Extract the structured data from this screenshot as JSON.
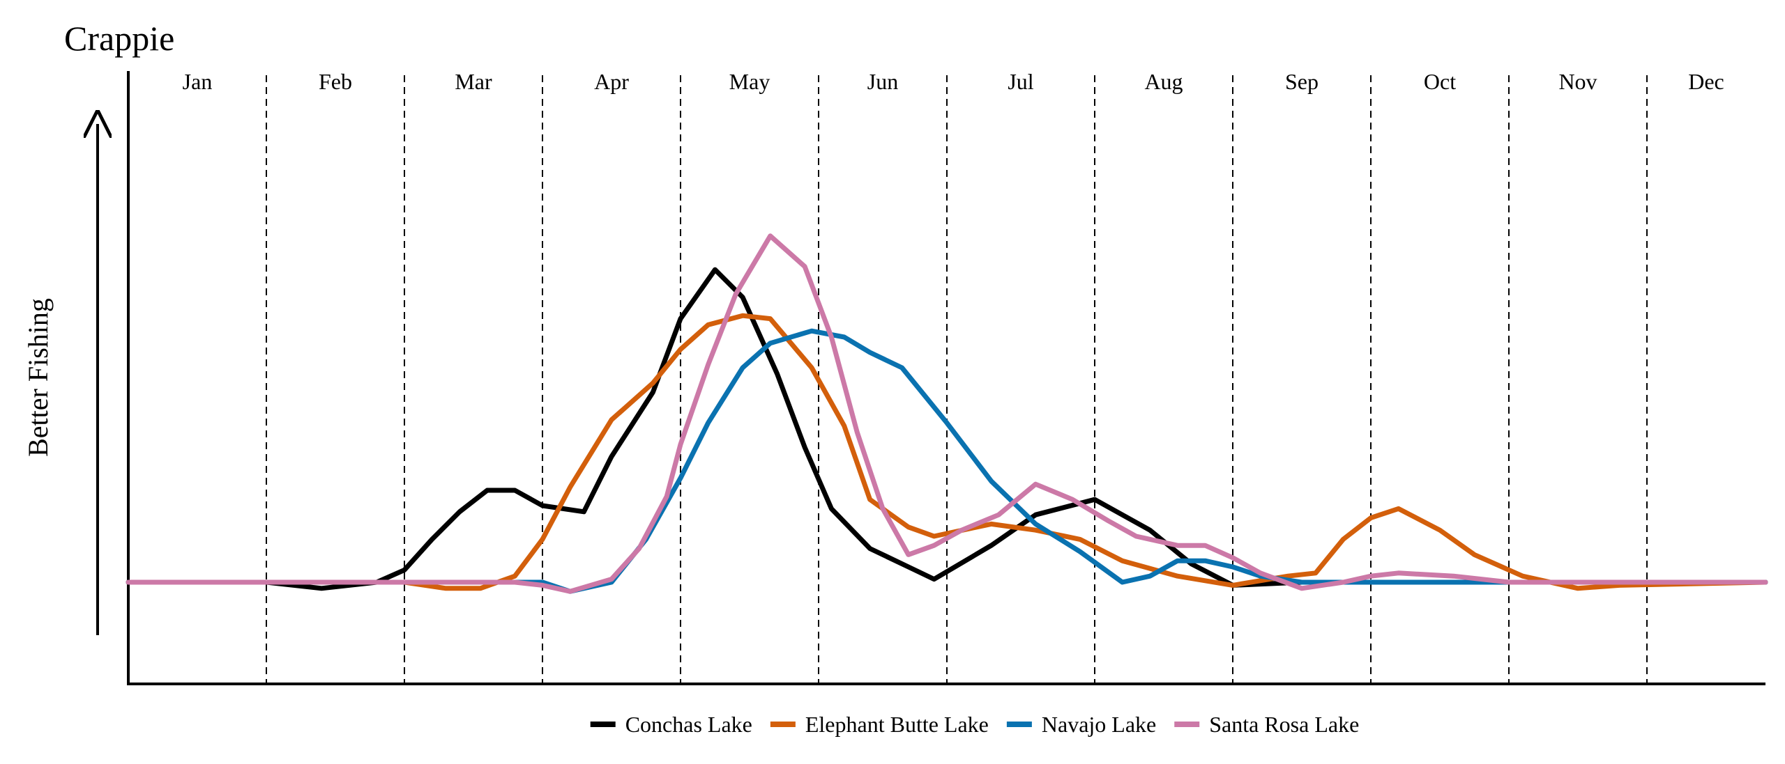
{
  "chart_data": {
    "type": "line",
    "title": "Crappie",
    "ylabel": "Better Fishing",
    "xlabel": "",
    "months": [
      "Jan",
      "Feb",
      "Mar",
      "Apr",
      "May",
      "Jun",
      "Jul",
      "Aug",
      "Sep",
      "Oct",
      "Nov",
      "Dec"
    ],
    "x_unit": "month (1 = start of Jan, 13 = end of Dec)",
    "xlim": [
      1,
      13
    ],
    "ylim": [
      -0.33,
      1.67
    ],
    "grid": "vertical dashed month dividers",
    "legend_position": "bottom-center",
    "series": [
      {
        "name": "Conchas Lake",
        "color": "#000000",
        "x": [
          1,
          2.0,
          2.4,
          2.8,
          3.0,
          3.2,
          3.4,
          3.6,
          3.8,
          4.0,
          4.3,
          4.5,
          4.8,
          5.0,
          5.25,
          5.45,
          5.7,
          5.9,
          6.1,
          6.4,
          6.7,
          6.9,
          7.3,
          7.6,
          8.0,
          8.4,
          8.7,
          9.0,
          9.5,
          10,
          13
        ],
        "y": [
          0,
          0,
          -0.02,
          0,
          0.04,
          0.14,
          0.23,
          0.3,
          0.3,
          0.25,
          0.23,
          0.41,
          0.62,
          0.86,
          1.02,
          0.93,
          0.68,
          0.44,
          0.24,
          0.11,
          0.05,
          0.01,
          0.12,
          0.22,
          0.27,
          0.17,
          0.06,
          -0.01,
          0,
          0,
          0
        ]
      },
      {
        "name": "Elephant Butte Lake",
        "color": "#D35F0B",
        "x": [
          1,
          2.0,
          3.0,
          3.3,
          3.55,
          3.8,
          4.0,
          4.2,
          4.5,
          4.8,
          5.0,
          5.2,
          5.45,
          5.65,
          5.95,
          6.2,
          6.4,
          6.7,
          6.9,
          7.3,
          7.6,
          7.9,
          8.2,
          8.6,
          9.0,
          9.4,
          9.6,
          9.8,
          10.0,
          10.2,
          10.5,
          10.75,
          11.1,
          11.5,
          11.8,
          13
        ],
        "y": [
          0,
          0,
          0,
          -0.02,
          -0.02,
          0.02,
          0.14,
          0.31,
          0.53,
          0.65,
          0.76,
          0.84,
          0.87,
          0.86,
          0.7,
          0.51,
          0.27,
          0.18,
          0.15,
          0.19,
          0.17,
          0.14,
          0.07,
          0.02,
          -0.01,
          0.02,
          0.03,
          0.14,
          0.21,
          0.24,
          0.17,
          0.09,
          0.02,
          -0.02,
          -0.01,
          0
        ]
      },
      {
        "name": "Navajo Lake",
        "color": "#0A72B0",
        "x": [
          1,
          4.0,
          4.2,
          4.5,
          4.75,
          5.0,
          5.2,
          5.45,
          5.65,
          5.95,
          6.2,
          6.4,
          6.65,
          7.0,
          7.3,
          7.6,
          7.9,
          8.2,
          8.4,
          8.6,
          8.8,
          9.0,
          9.2,
          9.5,
          13
        ],
        "y": [
          0,
          0,
          -0.03,
          0,
          0.14,
          0.34,
          0.52,
          0.7,
          0.78,
          0.82,
          0.8,
          0.75,
          0.7,
          0.52,
          0.33,
          0.19,
          0.1,
          0,
          0.02,
          0.07,
          0.07,
          0.05,
          0.02,
          0,
          0
        ]
      },
      {
        "name": "Santa Rosa Lake",
        "color": "#CC79A7",
        "x": [
          1,
          2.0,
          3.0,
          3.3,
          3.55,
          3.8,
          4.0,
          4.2,
          4.5,
          4.7,
          4.9,
          5.0,
          5.2,
          5.4,
          5.65,
          5.9,
          6.1,
          6.3,
          6.5,
          6.7,
          6.9,
          7.1,
          7.35,
          7.6,
          7.85,
          8.1,
          8.3,
          8.6,
          8.8,
          9.0,
          9.2,
          9.5,
          9.8,
          10.0,
          10.2,
          10.6,
          11.0,
          13
        ],
        "y": [
          0,
          0,
          0,
          0,
          0,
          0,
          -0.01,
          -0.03,
          0.01,
          0.11,
          0.28,
          0.45,
          0.71,
          0.94,
          1.13,
          1.03,
          0.8,
          0.49,
          0.24,
          0.09,
          0.12,
          0.17,
          0.22,
          0.32,
          0.27,
          0.2,
          0.15,
          0.12,
          0.12,
          0.08,
          0.03,
          -0.02,
          0,
          0.02,
          0.03,
          0.02,
          0,
          0
        ]
      }
    ]
  }
}
